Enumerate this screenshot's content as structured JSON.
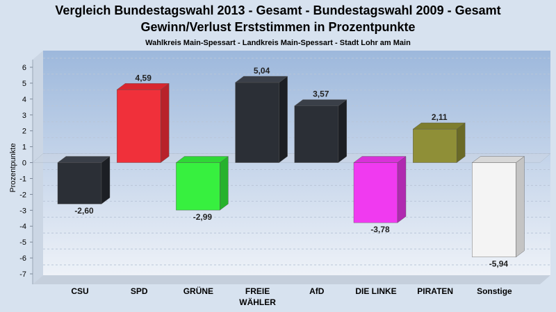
{
  "chart_data": {
    "type": "bar",
    "title": "Vergleich Bundestagswahl 2013 - Gesamt - Bundestagswahl 2009 - Gesamt",
    "title2": "Gewinn/Verlust Erststimmen in Prozentpunkte",
    "subtitle": "Wahlkreis Main-Spessart - Landkreis Main-Spessart - Stadt Lohr am Main",
    "ylabel": "Prozentpunkte",
    "xlabel": "",
    "ylim": [
      -7,
      6
    ],
    "yticks": [
      "6",
      "5",
      "4",
      "3",
      "2",
      "1",
      "0",
      "-1",
      "-2",
      "-3",
      "-4",
      "-5",
      "-6",
      "-7"
    ],
    "grid": true,
    "categories": [
      {
        "line1": "CSU",
        "line2": ""
      },
      {
        "line1": "SPD",
        "line2": ""
      },
      {
        "line1": "GRÜNE",
        "line2": ""
      },
      {
        "line1": "FREIE",
        "line2": "WÄHLER"
      },
      {
        "line1": "AfD",
        "line2": ""
      },
      {
        "line1": "DIE LINKE",
        "line2": ""
      },
      {
        "line1": "PIRATEN",
        "line2": ""
      },
      {
        "line1": "Sonstige",
        "line2": ""
      }
    ],
    "values": [
      -2.6,
      4.59,
      -2.99,
      5.04,
      3.57,
      -3.78,
      2.11,
      -5.94
    ],
    "value_labels": [
      "-2,60",
      "4,59",
      "-2,99",
      "5,04",
      "3,57",
      "-3,78",
      "2,11",
      "-5,94"
    ],
    "colors": [
      "#2b2f36",
      "#f0303a",
      "#37f03f",
      "#2b2f36",
      "#2b2f36",
      "#f03af0",
      "#8f8f37",
      "#f4f4f4"
    ],
    "side_colors": [
      "#1c1f24",
      "#b8222a",
      "#27b22d",
      "#1c1f24",
      "#1c1f24",
      "#b02ab0",
      "#6a6a27",
      "#c4c4c4"
    ],
    "top_colors": [
      "#3a3f48",
      "#d8262f",
      "#2fd836",
      "#3a3f48",
      "#3a3f48",
      "#d832d8",
      "#7e7e2f",
      "#d8d8d8"
    ]
  }
}
